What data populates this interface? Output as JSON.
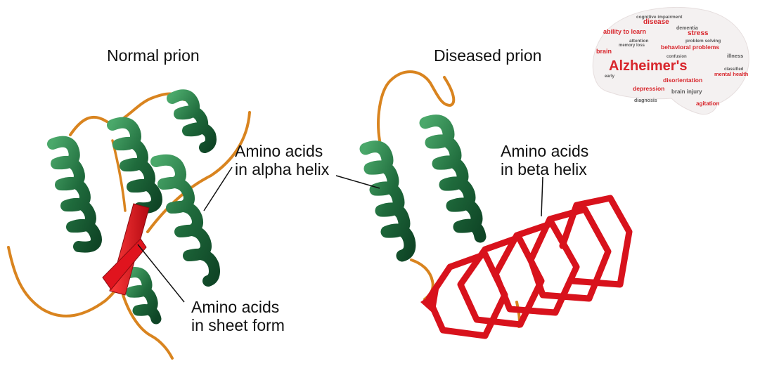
{
  "panels": {
    "normal": {
      "title": "Normal prion",
      "label_helix": [
        "Amino acids",
        "in alpha helix"
      ],
      "label_sheet": [
        "Amino acids",
        "in sheet form"
      ]
    },
    "diseased": {
      "title": "Diseased prion",
      "label_beta": [
        "Amino acids",
        "in beta helix"
      ]
    }
  },
  "word_cloud": {
    "main_word": "Alzheimer's",
    "words": [
      "cognitive impairment",
      "disease",
      "dementia",
      "ability to learn",
      "stress",
      "brain",
      "behavioral problems",
      "illness",
      "disorientation",
      "mental health",
      "depression",
      "brain injury",
      "diagnosis",
      "agitation",
      "problem solving",
      "attention",
      "classified",
      "early",
      "memory loss",
      "confusion"
    ]
  },
  "colors": {
    "helix_green": "#1f6b3c",
    "helix_green_light": "#3f9a5c",
    "loop_orange": "#d9841f",
    "sheet_red": "#e0141e",
    "cloud_red": "#d8262c",
    "cloud_gray": "#5a5a5a"
  }
}
